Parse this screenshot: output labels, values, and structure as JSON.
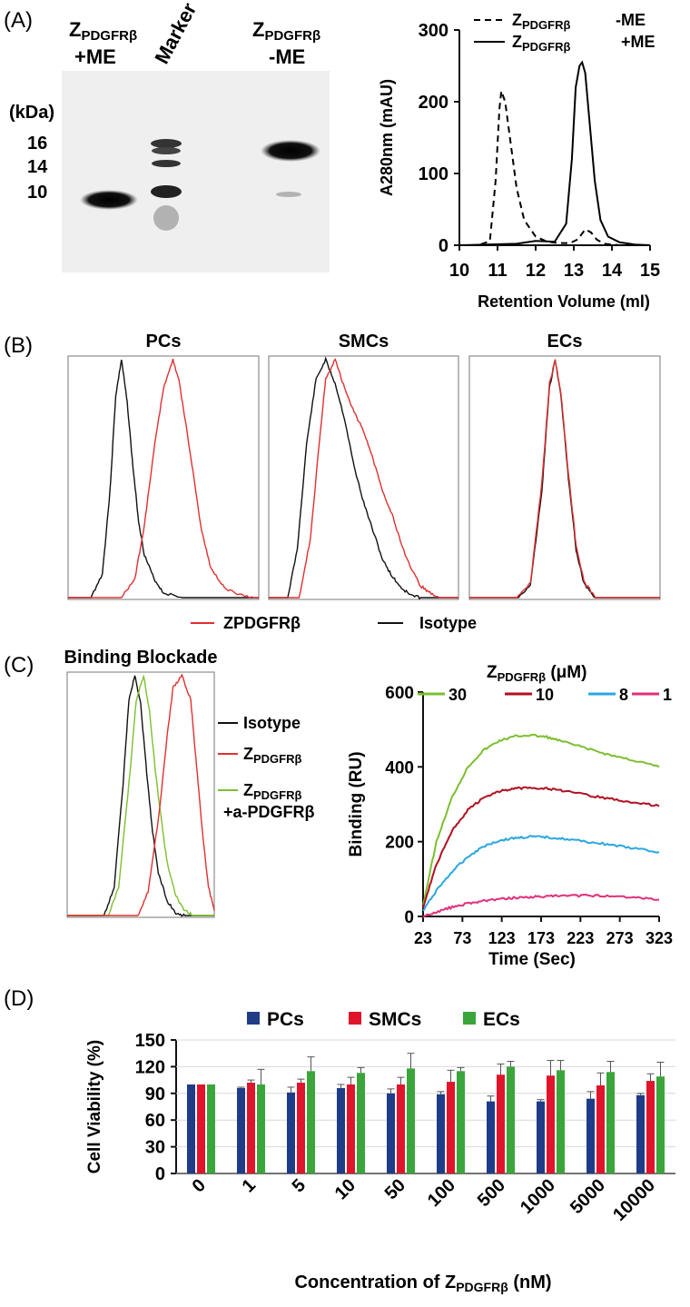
{
  "panels": {
    "a": "(A)",
    "b": "(B)",
    "c": "(C)",
    "d": "(D)"
  },
  "colors": {
    "pcs": "#1f3c88",
    "smcs": "#e0152b",
    "ecs": "#3aa53a",
    "red_trace": "#e03030",
    "green_trace": "#7cc02c",
    "c30": "#7cbf2e",
    "c10": "#b01020",
    "c8": "#2aa7e0",
    "c1": "#e0307a"
  },
  "gel": {
    "lane1_top": "Z",
    "lane1_sub": "PDGFRβ",
    "lane1_mod": "+ME",
    "marker_label": "Marker",
    "lane3_top": "Z",
    "lane3_sub": "PDGFRβ",
    "lane3_mod": "-ME",
    "kda_label": "(kDa)",
    "mw": [
      "16",
      "14",
      "10"
    ]
  },
  "chart_data": [
    {
      "id": "sec",
      "type": "line",
      "title": "",
      "xlabel": "Retention Volume (ml)",
      "ylabel": "A280nm (mAU)",
      "xlim": [
        10,
        15
      ],
      "ylim": [
        0,
        300
      ],
      "xticks": [
        "10",
        "11",
        "12",
        "13",
        "14",
        "15"
      ],
      "yticks": [
        "0",
        "100",
        "200",
        "300"
      ],
      "legend": [
        {
          "z": "Z",
          "sub": "PDGFRβ",
          "mod": "-ME",
          "style": "dashed"
        },
        {
          "z": "Z",
          "sub": "PDGFRβ",
          "mod": "+ME",
          "style": "solid"
        }
      ],
      "series": [
        {
          "name": "-ME",
          "style": "dashed",
          "x": [
            10.0,
            10.5,
            10.8,
            10.95,
            11.05,
            11.1,
            11.2,
            11.35,
            11.5,
            11.7,
            12.0,
            12.3,
            12.6,
            12.9,
            13.1,
            13.3,
            13.45,
            13.6,
            13.8,
            14.2,
            15.0
          ],
          "y": [
            0,
            0,
            6,
            90,
            190,
            215,
            200,
            140,
            80,
            35,
            12,
            5,
            3,
            3,
            8,
            22,
            18,
            8,
            2,
            0,
            0
          ]
        },
        {
          "name": "+ME",
          "style": "solid",
          "x": [
            10.0,
            11.5,
            12.0,
            12.5,
            12.8,
            12.95,
            13.05,
            13.15,
            13.22,
            13.3,
            13.4,
            13.55,
            13.7,
            13.9,
            14.2,
            14.6,
            15.0
          ],
          "y": [
            0,
            2,
            6,
            5,
            30,
            120,
            220,
            250,
            255,
            240,
            180,
            90,
            35,
            12,
            4,
            1,
            0
          ]
        }
      ]
    },
    {
      "id": "flow_pcs",
      "type": "line",
      "title": "PCs",
      "series": [
        {
          "name": "Isotype",
          "color": "#111111",
          "x": [
            0.0,
            0.12,
            0.18,
            0.22,
            0.25,
            0.28,
            0.31,
            0.34,
            0.37,
            0.4,
            0.45,
            0.5,
            0.6,
            1.0
          ],
          "y": [
            0,
            0,
            0.1,
            0.45,
            0.85,
            1.0,
            0.82,
            0.55,
            0.32,
            0.18,
            0.08,
            0.02,
            0,
            0
          ]
        },
        {
          "name": "ZPDGFRβ",
          "color": "#e03030",
          "x": [
            0.0,
            0.28,
            0.35,
            0.4,
            0.45,
            0.5,
            0.55,
            0.58,
            0.62,
            0.66,
            0.7,
            0.75,
            0.82,
            0.9,
            1.0
          ],
          "y": [
            0,
            0,
            0.08,
            0.3,
            0.62,
            0.88,
            1.0,
            0.92,
            0.72,
            0.5,
            0.28,
            0.12,
            0.04,
            0.01,
            0
          ]
        }
      ]
    },
    {
      "id": "flow_smcs",
      "type": "line",
      "title": "SMCs",
      "series": [
        {
          "name": "Isotype",
          "color": "#111111",
          "x": [
            0.0,
            0.1,
            0.15,
            0.2,
            0.25,
            0.3,
            0.35,
            0.4,
            0.45,
            0.5,
            0.55,
            0.6,
            0.65,
            0.7,
            0.75,
            0.8,
            1.0
          ],
          "y": [
            0,
            0,
            0.2,
            0.65,
            0.92,
            1.0,
            0.9,
            0.75,
            0.55,
            0.4,
            0.28,
            0.16,
            0.09,
            0.04,
            0.01,
            0,
            0
          ]
        },
        {
          "name": "ZPDGFRβ",
          "color": "#e03030",
          "x": [
            0.0,
            0.16,
            0.22,
            0.26,
            0.3,
            0.35,
            0.4,
            0.45,
            0.5,
            0.55,
            0.6,
            0.65,
            0.7,
            0.75,
            0.8,
            0.85,
            0.9,
            1.0
          ],
          "y": [
            0,
            0,
            0.25,
            0.6,
            0.92,
            1.0,
            0.88,
            0.78,
            0.7,
            0.58,
            0.45,
            0.35,
            0.22,
            0.12,
            0.05,
            0.02,
            0,
            0
          ]
        }
      ]
    },
    {
      "id": "flow_ecs",
      "type": "line",
      "title": "ECs",
      "series": [
        {
          "name": "Isotype",
          "color": "#111111",
          "x": [
            0.0,
            0.25,
            0.32,
            0.38,
            0.42,
            0.45,
            0.48,
            0.52,
            0.56,
            0.6,
            0.66,
            1.0
          ],
          "y": [
            0,
            0,
            0.05,
            0.45,
            0.88,
            1.0,
            0.85,
            0.5,
            0.2,
            0.06,
            0,
            0
          ]
        },
        {
          "name": "ZPDGFRβ",
          "color": "#e03030",
          "x": [
            0.0,
            0.25,
            0.32,
            0.38,
            0.42,
            0.45,
            0.48,
            0.52,
            0.56,
            0.6,
            0.66,
            1.0
          ],
          "y": [
            0,
            0,
            0.06,
            0.48,
            0.9,
            1.0,
            0.86,
            0.52,
            0.22,
            0.07,
            0,
            0
          ]
        }
      ]
    },
    {
      "id": "blockade",
      "type": "line",
      "title": "Binding Blockade",
      "legend": [
        {
          "label": "Isotype",
          "color": "#111111"
        },
        {
          "z": "Z",
          "sub": "PDGFRβ",
          "color": "#e03030"
        },
        {
          "z": "Z",
          "sub": "PDGFRβ",
          "extra": "+a-PDGFRβ",
          "color": "#7cc02c"
        }
      ],
      "series": [
        {
          "name": "Isotype",
          "color": "#111111",
          "x": [
            0.0,
            0.25,
            0.32,
            0.38,
            0.42,
            0.46,
            0.5,
            0.54,
            0.58,
            0.62,
            0.68,
            0.74,
            0.8,
            1.0
          ],
          "y": [
            0,
            0,
            0.12,
            0.55,
            0.9,
            1.0,
            0.88,
            0.6,
            0.35,
            0.18,
            0.06,
            0.01,
            0,
            0
          ]
        },
        {
          "name": "ZPDGFRβ+a-PDGFRβ",
          "color": "#7cc02c",
          "x": [
            0.0,
            0.28,
            0.35,
            0.42,
            0.47,
            0.52,
            0.56,
            0.6,
            0.64,
            0.68,
            0.74,
            0.8,
            0.86,
            1.0
          ],
          "y": [
            0,
            0,
            0.12,
            0.55,
            0.9,
            1.0,
            0.85,
            0.6,
            0.4,
            0.22,
            0.08,
            0.02,
            0,
            0
          ]
        },
        {
          "name": "ZPDGFRβ",
          "color": "#e03030",
          "x": [
            0.0,
            0.48,
            0.55,
            0.62,
            0.68,
            0.72,
            0.78,
            0.84,
            0.88,
            0.92,
            0.96,
            1.0
          ],
          "y": [
            0,
            0,
            0.1,
            0.4,
            0.75,
            0.95,
            1.0,
            0.9,
            0.62,
            0.35,
            0.12,
            0.02
          ]
        }
      ]
    },
    {
      "id": "spr",
      "type": "line",
      "title": "",
      "legend_title": {
        "z": "Z",
        "sub": "PDGFRβ",
        "unit": " (μM)"
      },
      "xlabel": "Time (Sec)",
      "ylabel": "Binding (RU)",
      "xlim": [
        23,
        323
      ],
      "ylim": [
        0,
        600
      ],
      "xticks": [
        "23",
        "73",
        "123",
        "173",
        "223",
        "273",
        "323"
      ],
      "yticks": [
        "0",
        "200",
        "400",
        "600"
      ],
      "series": [
        {
          "name": "30",
          "color": "#7cbf2e",
          "x": [
            23,
            40,
            60,
            80,
            100,
            120,
            140,
            160,
            180,
            200,
            230,
            260,
            290,
            323
          ],
          "y": [
            30,
            200,
            320,
            400,
            445,
            470,
            482,
            485,
            480,
            468,
            450,
            432,
            418,
            400
          ]
        },
        {
          "name": "10",
          "color": "#b01020",
          "x": [
            23,
            40,
            60,
            80,
            100,
            120,
            140,
            160,
            180,
            200,
            230,
            260,
            290,
            323
          ],
          "y": [
            25,
            140,
            230,
            285,
            318,
            335,
            342,
            345,
            342,
            336,
            325,
            315,
            305,
            295
          ]
        },
        {
          "name": "8",
          "color": "#2aa7e0",
          "x": [
            23,
            40,
            60,
            80,
            100,
            120,
            140,
            160,
            180,
            200,
            230,
            260,
            290,
            323
          ],
          "y": [
            15,
            70,
            120,
            160,
            188,
            203,
            210,
            213,
            212,
            208,
            200,
            192,
            182,
            172
          ]
        },
        {
          "name": "1",
          "color": "#e0307a",
          "x": [
            23,
            40,
            60,
            80,
            100,
            120,
            140,
            160,
            180,
            200,
            230,
            260,
            290,
            323
          ],
          "y": [
            0,
            12,
            25,
            35,
            42,
            46,
            50,
            52,
            53,
            55,
            56,
            55,
            52,
            45
          ]
        }
      ]
    },
    {
      "id": "viability",
      "type": "bar",
      "title": "",
      "legend": [
        "PCs",
        "SMCs",
        "ECs"
      ],
      "xlabel_pre": "Concentration of Z",
      "xlabel_sub": "PDGFRβ",
      "xlabel_post": " (nM)",
      "ylabel": "Cell Viability (%)",
      "ylim": [
        0,
        150
      ],
      "yticks": [
        "0",
        "30",
        "60",
        "90",
        "120",
        "150"
      ],
      "categories": [
        "0",
        "1",
        "5",
        "10",
        "50",
        "100",
        "500",
        "1000",
        "5000",
        "10000"
      ],
      "series": [
        {
          "name": "PCs",
          "values": [
            100,
            96,
            91,
            96,
            90,
            89,
            81,
            81,
            84,
            88
          ],
          "errors": [
            0,
            1,
            6,
            4,
            5,
            3,
            6,
            2,
            8,
            2
          ]
        },
        {
          "name": "SMCs",
          "values": [
            100,
            102,
            102,
            100,
            100,
            103,
            111,
            110,
            99,
            104
          ],
          "errors": [
            0,
            3,
            4,
            8,
            8,
            13,
            12,
            17,
            14,
            8
          ]
        },
        {
          "name": "ECs",
          "values": [
            100,
            100,
            115,
            113,
            118,
            115,
            120,
            116,
            114,
            109
          ],
          "errors": [
            0,
            17,
            16,
            6,
            17,
            4,
            6,
            11,
            12,
            16
          ]
        }
      ]
    }
  ]
}
